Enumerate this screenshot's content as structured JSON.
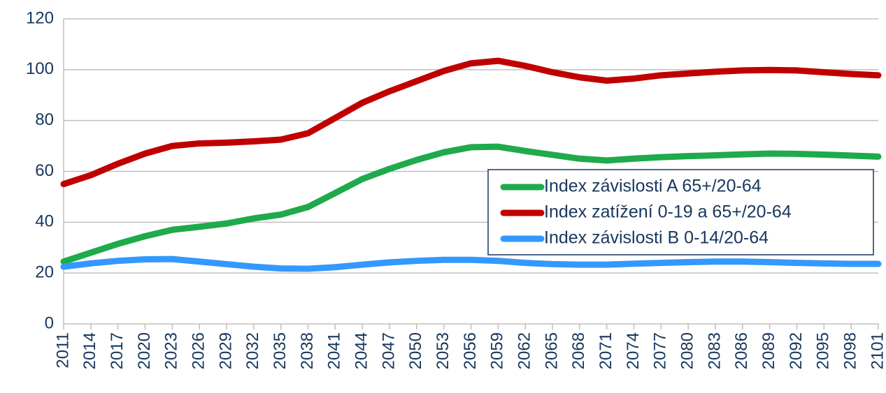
{
  "chart_data": {
    "type": "line",
    "x": [
      2011,
      2014,
      2017,
      2020,
      2023,
      2026,
      2029,
      2032,
      2035,
      2038,
      2041,
      2044,
      2047,
      2050,
      2053,
      2056,
      2059,
      2062,
      2065,
      2068,
      2071,
      2074,
      2077,
      2080,
      2083,
      2086,
      2089,
      2092,
      2095,
      2098,
      2101
    ],
    "series": [
      {
        "name": "Index závislosti A 65+/20-64",
        "color": "#1faa4b",
        "values": [
          24.5,
          28,
          31.5,
          34.5,
          37,
          38.2,
          39.5,
          41.5,
          43,
          46,
          51.5,
          57,
          61,
          64.5,
          67.5,
          69.5,
          69.7,
          68,
          66.5,
          65,
          64.3,
          65,
          65.6,
          66,
          66.3,
          66.7,
          67,
          66.9,
          66.6,
          66.2,
          65.8
        ]
      },
      {
        "name": "Index zatížení 0-19 a 65+/20-64",
        "color": "#c00000",
        "values": [
          55,
          58.5,
          63,
          67,
          70,
          71,
          71.3,
          71.8,
          72.5,
          75,
          81,
          87,
          91.5,
          95.5,
          99.5,
          102.5,
          103.5,
          101.5,
          99,
          97,
          95.7,
          96.5,
          97.8,
          98.5,
          99.2,
          99.7,
          99.9,
          99.7,
          99,
          98.3,
          97.8
        ]
      },
      {
        "name": "Index závislosti B 0-14/20-64",
        "color": "#3399ff",
        "values": [
          22.5,
          23.8,
          24.8,
          25.4,
          25.5,
          24.5,
          23.5,
          22.5,
          21.8,
          21.7,
          22.3,
          23.3,
          24.2,
          24.8,
          25.2,
          25.2,
          24.8,
          24,
          23.5,
          23.3,
          23.3,
          23.7,
          24,
          24.3,
          24.5,
          24.5,
          24.3,
          24,
          23.8,
          23.6,
          23.6
        ]
      }
    ],
    "xlim": [
      2011,
      2101
    ],
    "xticks": [
      2011,
      2014,
      2017,
      2020,
      2023,
      2026,
      2029,
      2032,
      2035,
      2038,
      2041,
      2044,
      2047,
      2050,
      2053,
      2056,
      2059,
      2062,
      2065,
      2068,
      2071,
      2074,
      2077,
      2080,
      2083,
      2086,
      2089,
      2092,
      2095,
      2098,
      2101
    ],
    "ylim": [
      0,
      120
    ],
    "yticks": [
      0,
      20,
      40,
      60,
      80,
      100,
      120
    ],
    "grid": true,
    "legend_position": "right"
  }
}
